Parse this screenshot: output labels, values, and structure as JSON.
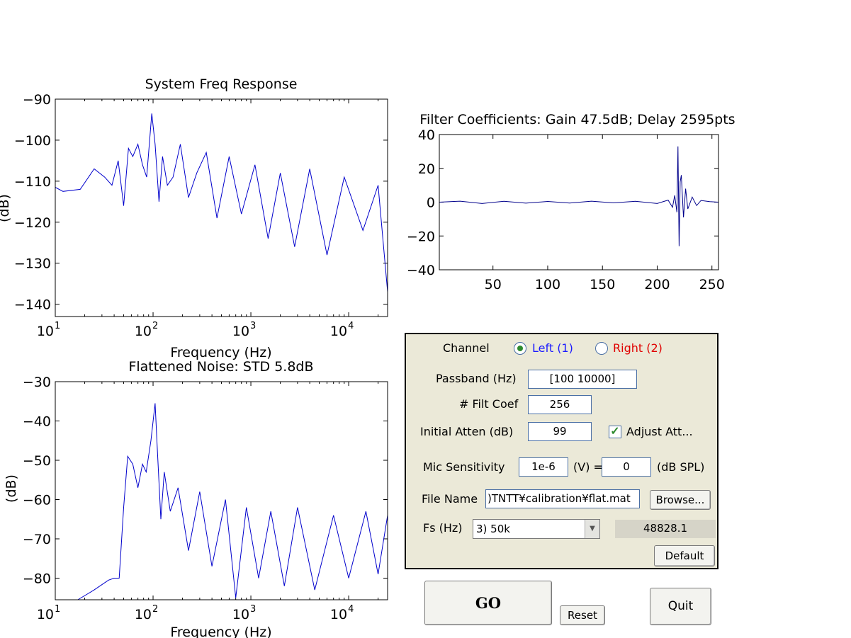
{
  "chart_data": [
    {
      "type": "line",
      "title": "System Freq Response",
      "xlabel": "Frequency (Hz)",
      "ylabel": "(dB)",
      "x_scale": "log",
      "xlim": [
        10,
        25000
      ],
      "ylim": [
        -143,
        -90
      ],
      "xticks": [
        10,
        100,
        1000,
        10000
      ],
      "xtick_labels": [
        "10",
        "2",
        "3",
        "4"
      ],
      "yticks": [
        -90,
        -100,
        -110,
        -120,
        -130,
        -140
      ],
      "color": "#0000cc",
      "series": [
        {
          "x": [
            10,
            12,
            18,
            25,
            32,
            38,
            44,
            50,
            56,
            62,
            70,
            78,
            86,
            97,
            105,
            115,
            125,
            140,
            160,
            190,
            230,
            280,
            350,
            450,
            600,
            800,
            1100,
            1500,
            2000,
            2800,
            4000,
            6000,
            9000,
            14000,
            20000,
            25000
          ],
          "y": [
            -111.5,
            -112.5,
            -112,
            -107,
            -109,
            -111,
            -105,
            -116,
            -102,
            -104,
            -101,
            -106,
            -109,
            -93.5,
            -101,
            -115,
            -104,
            -111,
            -109,
            -101,
            -114,
            -108,
            -103,
            -119,
            -104,
            -118,
            -106,
            -124,
            -108,
            -126,
            -107,
            -128,
            -109,
            -122,
            -111,
            -137
          ]
        }
      ]
    },
    {
      "type": "line",
      "title": "Filter Coefficients: Gain 47.5dB; Delay 2595pts",
      "xlim": [
        1,
        256
      ],
      "ylim": [
        -40,
        40
      ],
      "xticks": [
        50,
        100,
        150,
        200,
        250
      ],
      "yticks": [
        40,
        20,
        0,
        -20,
        -40
      ],
      "color": "#00008b",
      "series": [
        {
          "x": [
            1,
            20,
            40,
            60,
            80,
            100,
            120,
            140,
            160,
            180,
            200,
            210,
            214,
            216,
            218,
            219,
            220,
            221,
            222,
            224,
            226,
            228,
            232,
            236,
            240,
            248,
            256
          ],
          "y": [
            0,
            0.6,
            -0.8,
            0.5,
            -0.6,
            0.4,
            -0.5,
            0.6,
            -0.4,
            0.5,
            -0.8,
            1.2,
            -3,
            4,
            -6,
            33,
            -26,
            12,
            16,
            -9,
            8,
            -4,
            3,
            -2,
            1,
            0.3,
            0
          ]
        }
      ]
    },
    {
      "type": "line",
      "title": "Flattened Noise: STD 5.8dB",
      "xlabel": "Frequency (Hz)",
      "ylabel": "(dB)",
      "x_scale": "log",
      "xlim": [
        10,
        25000
      ],
      "ylim": [
        -85.5,
        -30
      ],
      "xticks": [
        10,
        100,
        1000,
        10000
      ],
      "xtick_labels": [
        "10",
        "2",
        "3",
        "4"
      ],
      "yticks": [
        -30,
        -40,
        -50,
        -60,
        -70,
        -80
      ],
      "color": "#0000cc",
      "series": [
        {
          "x": [
            17,
            25,
            35,
            40,
            45,
            50,
            55,
            62,
            70,
            78,
            85,
            95,
            105,
            110,
            120,
            130,
            150,
            180,
            230,
            300,
            400,
            550,
            700,
            900,
            1200,
            1600,
            2200,
            3000,
            4500,
            7000,
            10000,
            15000,
            20000,
            25000
          ],
          "y": [
            -85.5,
            -83,
            -80.5,
            -80,
            -80,
            -62,
            -49,
            -51,
            -57,
            -51,
            -53,
            -45,
            -35.5,
            -46,
            -65,
            -53,
            -63,
            -57,
            -73,
            -58,
            -77,
            -60,
            -85,
            -62,
            -80,
            -63,
            -82,
            -62,
            -83,
            -64,
            -80,
            -63,
            -79,
            -64
          ]
        }
      ]
    }
  ],
  "axis_base": "10",
  "panel": {
    "channel_label": "Channel",
    "left_label": "Left (1)",
    "right_label": "Right (2)",
    "passband_label": "Passband (Hz)",
    "passband_value": "[100 10000]",
    "filt_coef_label": "# Filt Coef",
    "filt_coef_value": "256",
    "atten_label": "Initial Atten (dB)",
    "atten_value": "99",
    "adjust_label": "Adjust Att...",
    "mic_label": "Mic Sensitivity",
    "mic_value": "1e-6",
    "volt_label": "(V) =",
    "spl_value": "0",
    "spl_label": "(dB SPL)",
    "file_label": "File Name",
    "file_value": ")TNTT¥calibration¥flat.mat",
    "browse_label": "Browse...",
    "fs_label": "Fs (Hz)",
    "fs_value": "3) 50k",
    "fs_readout": "48828.1",
    "default_label": "Default"
  },
  "buttons": {
    "go": "GO",
    "reset": "Reset",
    "quit": "Quit"
  },
  "colors": {
    "panel_bg": "#ebe9d8",
    "left_text": "#1a1aff",
    "right_text": "#e00000",
    "trace": "#0000cc",
    "readout_bg": "#d6d4c8"
  }
}
